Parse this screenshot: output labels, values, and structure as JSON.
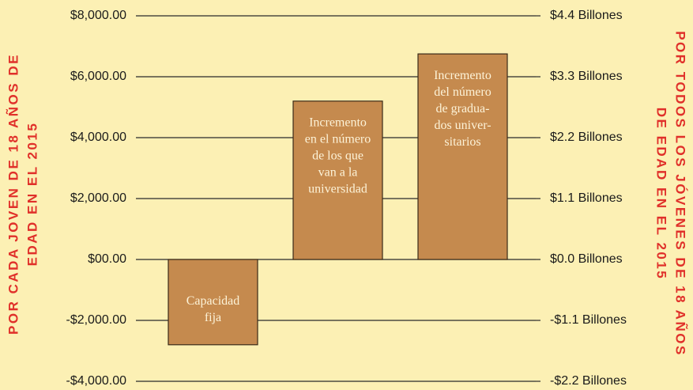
{
  "chart_data": {
    "type": "bar",
    "categories": [
      [
        "Capacidad",
        "fija"
      ],
      [
        "Incremento",
        "en el número",
        "de los que",
        "van a la",
        "universidad"
      ],
      [
        "Incremento",
        "del número",
        "de gradua-",
        "dos univer-",
        "sitarios"
      ]
    ],
    "values": [
      -2800,
      5200,
      6750
    ],
    "color": "#c58a4e",
    "ylim": [
      -4000,
      8000
    ],
    "yticks": [
      {
        "value": 8000,
        "label": "$8,000.00"
      },
      {
        "value": 6000,
        "label": "$6,000.00"
      },
      {
        "value": 4000,
        "label": "$4,000.00"
      },
      {
        "value": 2000,
        "label": "$2,000.00"
      },
      {
        "value": 0,
        "label": "$00.00"
      },
      {
        "value": -2000,
        "label": "-$2,000.00"
      },
      {
        "value": -4000,
        "label": "-$4,000.00"
      }
    ],
    "y2lim": [
      -2.2,
      4.4
    ],
    "y2ticks": [
      {
        "value": 4.4,
        "label": "$4.4 Billones"
      },
      {
        "value": 3.3,
        "label": "$3.3 Billones"
      },
      {
        "value": 2.2,
        "label": "$2.2 Billones"
      },
      {
        "value": 1.1,
        "label": "$1.1 Billones"
      },
      {
        "value": 0.0,
        "label": "$0.0 Billones"
      },
      {
        "value": -1.1,
        "label": "-$1.1 Billones"
      },
      {
        "value": -2.2,
        "label": "-$2.2 Billones"
      }
    ],
    "ylabel": [
      "POR CADA JOVEN DE 18 AÑOS DE",
      "EDAD EN EL 2015"
    ],
    "y2label": [
      "POR TODOS LOS JÓVENES DE 18 AÑOS",
      "DE EDAD EN EL 2015"
    ],
    "grid": true
  }
}
